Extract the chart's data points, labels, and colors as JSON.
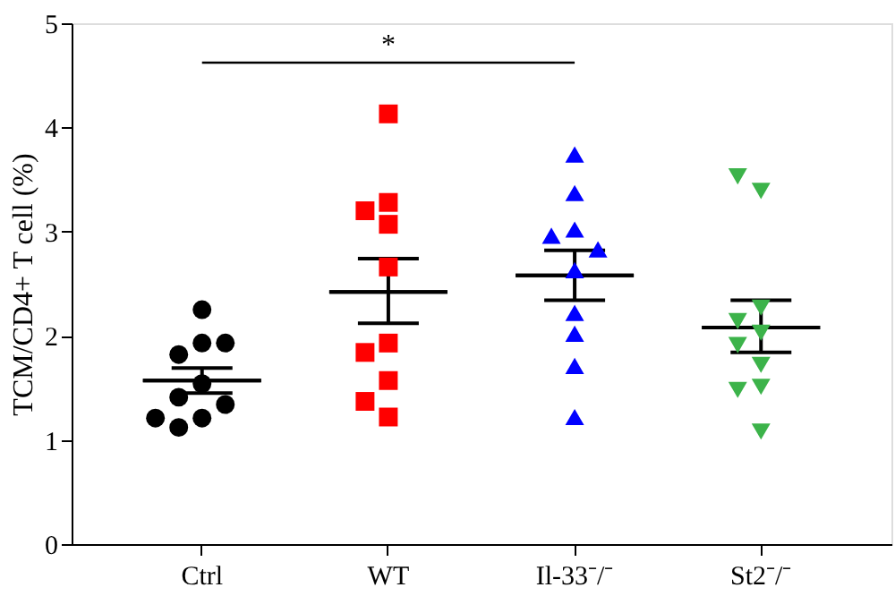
{
  "chart_data": {
    "type": "scatter",
    "ylabel": "TCM/CD4+ T cell (%)",
    "categories": [
      "Ctrl",
      "WT",
      "Il-33⁻/⁻",
      "St2⁻/⁻"
    ],
    "ylim": [
      0,
      5
    ],
    "yticks": [
      0,
      1,
      2,
      3,
      4,
      5
    ],
    "grid": false,
    "legend": false,
    "series": [
      {
        "color": "#000000",
        "marker": "circle",
        "x": [
          "Ctrl",
          "Ctrl",
          "Ctrl",
          "Ctrl",
          "Ctrl",
          "Ctrl",
          "Ctrl",
          "Ctrl",
          "Ctrl",
          "Ctrl"
        ],
        "values": [
          2.25,
          1.93,
          1.82,
          1.93,
          1.54,
          1.41,
          1.34,
          1.21,
          1.21,
          1.12
        ]
      },
      {
        "color": "#ff0000",
        "marker": "square",
        "x": [
          "WT",
          "WT",
          "WT",
          "WT",
          "WT",
          "WT",
          "WT",
          "WT",
          "WT",
          "WT"
        ],
        "values": [
          4.13,
          3.28,
          3.07,
          3.2,
          2.66,
          1.93,
          1.84,
          1.57,
          1.37,
          1.22
        ]
      },
      {
        "color": "#0000ff",
        "marker": "triangle",
        "x": [
          "Il-33⁻/⁻",
          "Il-33⁻/⁻",
          "Il-33⁻/⁻",
          "Il-33⁻/⁻",
          "Il-33⁻/⁻",
          "Il-33⁻/⁻",
          "Il-33⁻/⁻",
          "Il-33⁻/⁻",
          "Il-33⁻/⁻",
          "Il-33⁻/⁻"
        ],
        "values": [
          3.74,
          3.37,
          3.02,
          2.96,
          2.83,
          2.63,
          2.22,
          2.02,
          1.71,
          1.22
        ]
      },
      {
        "color": "#3cb34a",
        "marker": "triangle_down",
        "x": [
          "St2⁻/⁻",
          "St2⁻/⁻",
          "St2⁻/⁻",
          "St2⁻/⁻",
          "St2⁻/⁻",
          "St2⁻/⁻",
          "St2⁻/⁻",
          "St2⁻/⁻",
          "St2⁻/⁻",
          "St2⁻/⁻"
        ],
        "values": [
          3.39,
          3.53,
          2.27,
          2.14,
          2.03,
          1.91,
          1.72,
          1.51,
          1.48,
          1.08
        ]
      },
      {
        "type": "box",
        "color": "#000000",
        "boxes": [
          {
            "low": 1.45,
            "q1": 1.57,
            "median": 1.57,
            "q3": 1.57,
            "high": 1.69
          },
          {
            "low": 2.12,
            "q1": 2.42,
            "median": 2.42,
            "q3": 2.42,
            "high": 2.74
          },
          {
            "low": 2.34,
            "q1": 2.58,
            "median": 2.58,
            "q3": 2.58,
            "high": 2.82
          },
          {
            "low": 1.84,
            "q1": 2.08,
            "median": 2.08,
            "q3": 2.08,
            "high": 2.34
          }
        ]
      }
    ],
    "annotations": [
      "*"
    ]
  }
}
